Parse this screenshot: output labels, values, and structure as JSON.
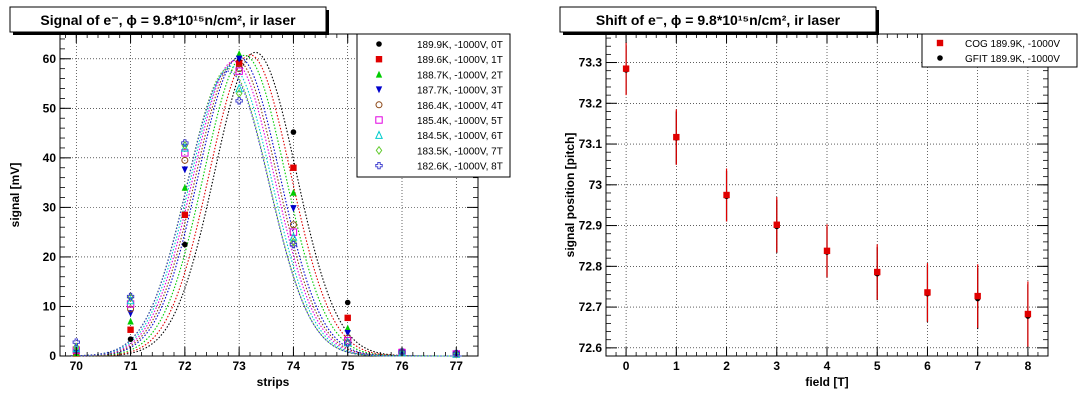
{
  "chart_data": [
    {
      "type": "scatter",
      "title": "Signal of e⁻, ϕ = 9.8*10¹⁵n/cm², ir laser",
      "xlabel": "strips",
      "ylabel": "signal [mV]",
      "xlim": [
        69.7,
        77.4
      ],
      "ylim": [
        0,
        65
      ],
      "xticks": [
        70,
        71,
        72,
        73,
        74,
        75,
        76,
        77
      ],
      "yticks": [
        0,
        10,
        20,
        30,
        40,
        50,
        60
      ],
      "grid": true,
      "legend_position": "top-right",
      "x": [
        70,
        71,
        72,
        73,
        74,
        75,
        76,
        77
      ],
      "series": [
        {
          "name": "189.9K, -1000V,   0T",
          "color": "#000000",
          "marker": "circle",
          "fit_center": 73.3,
          "fit_peak": 61.3,
          "fit_sigma": 0.75,
          "values": [
            0.6,
            3.4,
            22.5,
            59.5,
            45.2,
            10.8,
            0.8,
            0.5
          ]
        },
        {
          "name": "189.6K, -1000V,   1T",
          "color": "#e00000",
          "marker": "square",
          "fit_center": 73.2,
          "fit_peak": 60.8,
          "fit_sigma": 0.75,
          "values": [
            0.5,
            5.3,
            28.5,
            59.0,
            38.0,
            7.7,
            0.8,
            0.4
          ]
        },
        {
          "name": "188.7K, -1000V,   2T",
          "color": "#00cc00",
          "marker": "triangle-up",
          "fit_center": 73.1,
          "fit_peak": 60.7,
          "fit_sigma": 0.75,
          "values": [
            0.6,
            7.0,
            34.0,
            61.0,
            33.0,
            5.6,
            0.7,
            0.4
          ]
        },
        {
          "name": "187.7K, -1000V,   3T",
          "color": "#0000cc",
          "marker": "triangle-down",
          "fit_center": 73.0,
          "fit_peak": 60.3,
          "fit_sigma": 0.75,
          "values": [
            0.8,
            8.6,
            37.6,
            60.0,
            29.8,
            4.6,
            0.7,
            0.4
          ]
        },
        {
          "name": "186.4K, -1000V,   4T",
          "color": "#8b4513",
          "marker": "open-circle",
          "fit_center": 72.95,
          "fit_peak": 59.8,
          "fit_sigma": 0.75,
          "values": [
            1.0,
            9.5,
            39.5,
            58.0,
            26.5,
            3.6,
            0.7,
            0.4
          ]
        },
        {
          "name": "185.4K, -1000V,   5T",
          "color": "#e000e0",
          "marker": "open-square",
          "fit_center": 72.9,
          "fit_peak": 59.5,
          "fit_sigma": 0.75,
          "values": [
            1.2,
            10.5,
            41.0,
            57.5,
            25.0,
            3.1,
            0.7,
            0.4
          ]
        },
        {
          "name": "184.5K, -1000V,   6T",
          "color": "#00cccc",
          "marker": "open-triangle",
          "fit_center": 72.85,
          "fit_peak": 58.5,
          "fit_sigma": 0.75,
          "values": [
            1.5,
            11.2,
            42.0,
            54.0,
            24.0,
            2.8,
            0.7,
            0.4
          ]
        },
        {
          "name": "183.5K, -1000V,   7T",
          "color": "#66cc33",
          "marker": "open-diamond",
          "fit_center": 72.8,
          "fit_peak": 58.0,
          "fit_sigma": 0.75,
          "values": [
            1.8,
            11.8,
            42.5,
            53.0,
            23.0,
            2.5,
            0.7,
            0.4
          ]
        },
        {
          "name": "182.6K, -1000V,   8T",
          "color": "#3333cc",
          "marker": "open-cross",
          "fit_center": 72.8,
          "fit_peak": 57.5,
          "fit_sigma": 0.75,
          "values": [
            2.8,
            12.0,
            43.0,
            51.5,
            22.5,
            2.6,
            0.8,
            0.5
          ]
        }
      ]
    },
    {
      "type": "scatter",
      "title": "Shift of e⁻, ϕ = 9.8*10¹⁵n/cm², ir laser",
      "xlabel": "field [T]",
      "ylabel": "signal position [pitch]",
      "xlim": [
        -0.4,
        8.4
      ],
      "ylim": [
        72.58,
        73.37
      ],
      "xticks": [
        0,
        1,
        2,
        3,
        4,
        5,
        6,
        7,
        8
      ],
      "yticks": [
        72.6,
        72.7,
        72.8,
        72.9,
        73,
        73.1,
        73.2,
        73.3
      ],
      "ytick_labels": [
        "72.6",
        "72.7",
        "72.8",
        "72.9",
        "73",
        "73.1",
        "73.2",
        "73.3"
      ],
      "grid": true,
      "legend_position": "top-right",
      "x": [
        0,
        1,
        2,
        3,
        4,
        5,
        6,
        7,
        8
      ],
      "series": [
        {
          "name": "COG  189.9K, -1000V",
          "color": "#e00000",
          "marker": "square",
          "values": [
            73.285,
            73.117,
            72.975,
            72.902,
            72.838,
            72.786,
            72.736,
            72.727,
            72.683
          ],
          "error": [
            0.065,
            0.068,
            0.065,
            0.068,
            0.065,
            0.068,
            0.072,
            0.078,
            0.08
          ]
        },
        {
          "name": "GFIT  189.9K, -1000V",
          "color": "#000000",
          "marker": "circle",
          "values": [
            73.282,
            73.115,
            72.972,
            72.898,
            72.835,
            72.782,
            72.733,
            72.721,
            72.678
          ],
          "error": [
            0.06,
            0.065,
            0.062,
            0.065,
            0.062,
            0.065,
            0.07,
            0.075,
            0.078
          ]
        }
      ]
    }
  ]
}
